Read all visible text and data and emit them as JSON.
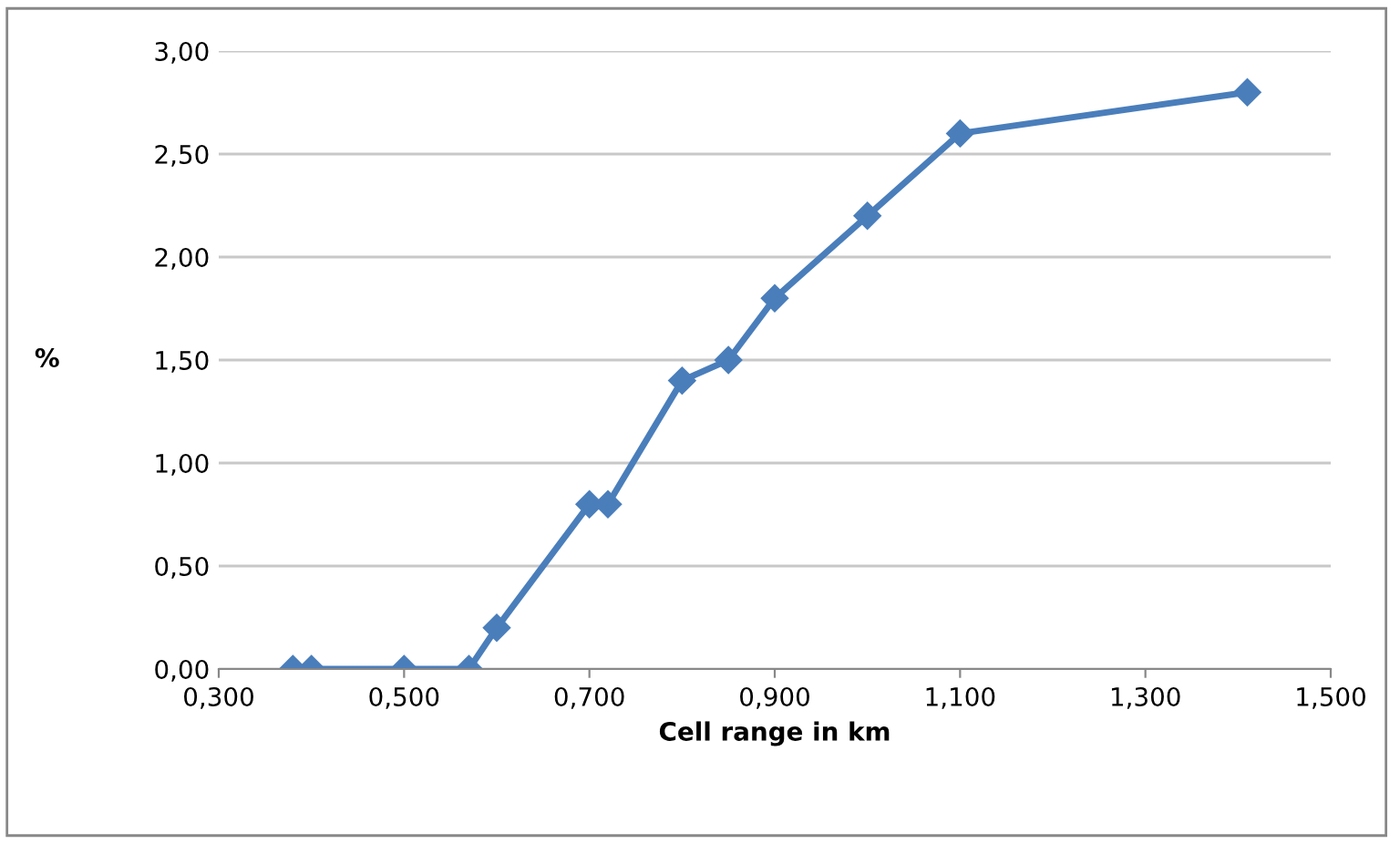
{
  "chart_data": {
    "type": "line",
    "xlabel": "Cell range in km",
    "ylabel": "%",
    "x": [
      0.38,
      0.4,
      0.5,
      0.57,
      0.6,
      0.7,
      0.72,
      0.8,
      0.85,
      0.9,
      1.0,
      1.1,
      1.41
    ],
    "series": [
      {
        "color": "#4a7ebb",
        "values": [
          0,
          0,
          0,
          0,
          0.2,
          0.8,
          0.8,
          1.4,
          1.5,
          1.8,
          2.2,
          2.6,
          2.8
        ]
      }
    ],
    "xlim": [
      0.3,
      1.5
    ],
    "xticks": [
      {
        "value": 0.3,
        "label": "0,300"
      },
      {
        "value": 0.5,
        "label": "0,500"
      },
      {
        "value": 0.7,
        "label": "0,700"
      },
      {
        "value": 0.9,
        "label": "0,900"
      },
      {
        "value": 1.1,
        "label": "1,100"
      },
      {
        "value": 1.3,
        "label": "1,300"
      },
      {
        "value": 1.5,
        "label": "1,500"
      }
    ],
    "ylim": [
      0,
      3
    ],
    "yticks": [
      {
        "value": 0,
        "label": "0,00"
      },
      {
        "value": 0.5,
        "label": "0,50"
      },
      {
        "value": 1,
        "label": "1,00"
      },
      {
        "value": 1.5,
        "label": "1,50"
      },
      {
        "value": 2,
        "label": "2,00"
      },
      {
        "value": 2.5,
        "label": "2,50"
      },
      {
        "value": 3,
        "label": "3,00"
      }
    ],
    "grid": "y",
    "marker": "diamond",
    "line_style": "solid",
    "legend": false
  }
}
